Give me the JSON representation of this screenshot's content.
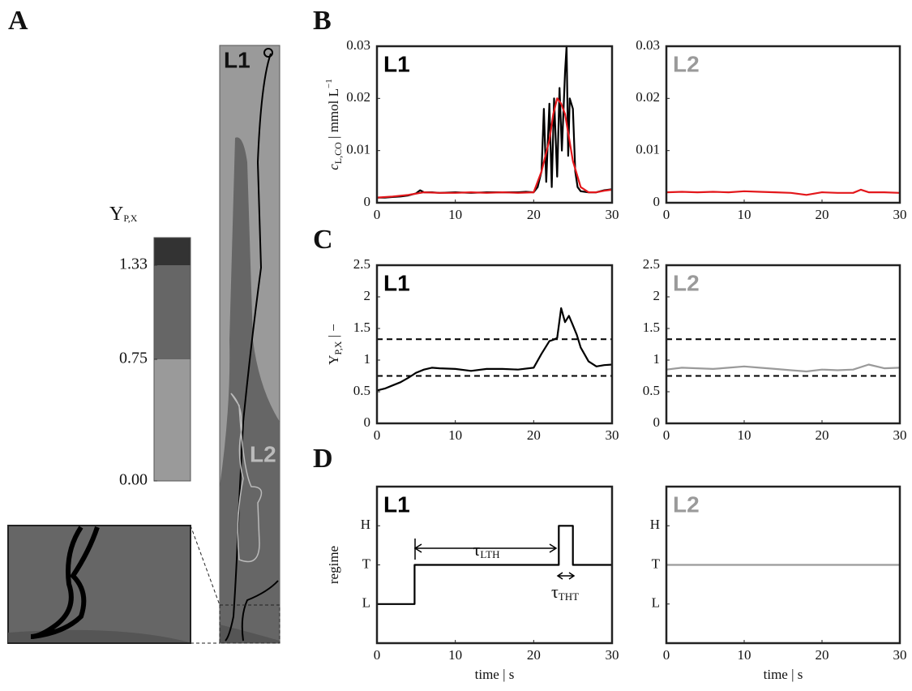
{
  "figure": {
    "panel_labels": [
      "A",
      "B",
      "C",
      "D"
    ]
  },
  "map": {
    "labels": [
      "L1",
      "L2"
    ]
  },
  "chart_data": [
    {
      "type": "colorbar",
      "title": {
        "symbol": "Y",
        "sub": "P,X"
      },
      "ylim": [
        0,
        1.5
      ],
      "yticks": [
        {
          "value": 0,
          "label": "0.00"
        },
        {
          "value": 0.75,
          "label": "0.75"
        },
        {
          "value": 1.33,
          "label": "1.33"
        }
      ],
      "levels": [
        0,
        0.75,
        1.33
      ],
      "colors": [
        "#9a9a9a",
        "#666666",
        "#333333"
      ]
    },
    {
      "type": "line",
      "label": "L1",
      "label_color": "#000000",
      "ylabel": {
        "symbol": "c",
        "sub": "L,CO",
        "unit": " | mmol L",
        "sup": "−1"
      },
      "xlim": [
        0,
        30
      ],
      "xticks": [
        0,
        10,
        20,
        30
      ],
      "ylim": [
        0,
        0.03
      ],
      "yticks": [
        0,
        0.01,
        0.02,
        0.03
      ],
      "series": [
        {
          "color": "#000000",
          "x": [
            0,
            1,
            2,
            3,
            4,
            5,
            5.5,
            6,
            7,
            8,
            10,
            12,
            14,
            16,
            18,
            19,
            20,
            20.5,
            21,
            21.3,
            21.6,
            22,
            22.3,
            22.6,
            23,
            23.3,
            23.6,
            24,
            24.2,
            24.4,
            24.6,
            25,
            25.3,
            25.6,
            26,
            27,
            28,
            29,
            30
          ],
          "values": [
            0.001,
            0.001,
            0.0011,
            0.0012,
            0.0014,
            0.0018,
            0.0024,
            0.002,
            0.002,
            0.0019,
            0.002,
            0.0019,
            0.002,
            0.002,
            0.002,
            0.0021,
            0.002,
            0.003,
            0.006,
            0.018,
            0.004,
            0.019,
            0.003,
            0.02,
            0.005,
            0.022,
            0.01,
            0.025,
            0.03,
            0.009,
            0.02,
            0.018,
            0.006,
            0.003,
            0.0022,
            0.002,
            0.002,
            0.0024,
            0.0026
          ]
        },
        {
          "color": "#e3171b",
          "x": [
            0,
            2,
            4,
            6,
            8,
            10,
            12,
            14,
            16,
            18,
            20,
            21,
            22,
            22.5,
            23,
            23.5,
            24,
            25,
            26,
            27,
            28,
            29,
            30
          ],
          "values": [
            0.001,
            0.0012,
            0.0015,
            0.002,
            0.0019,
            0.0019,
            0.002,
            0.0019,
            0.002,
            0.0019,
            0.002,
            0.006,
            0.012,
            0.017,
            0.02,
            0.019,
            0.017,
            0.008,
            0.003,
            0.002,
            0.002,
            0.0023,
            0.0025
          ]
        }
      ]
    },
    {
      "type": "line",
      "label": "L2",
      "label_color": "#9a9a9a",
      "xlim": [
        0,
        30
      ],
      "xticks": [
        0,
        10,
        20,
        30
      ],
      "ylim": [
        0,
        0.03
      ],
      "yticks": [
        0,
        0.01,
        0.02,
        0.03
      ],
      "series": [
        {
          "color": "#e3171b",
          "x": [
            0,
            2,
            4,
            6,
            8,
            10,
            12,
            14,
            16,
            18,
            20,
            22,
            24,
            25,
            26,
            28,
            30
          ],
          "values": [
            0.002,
            0.0021,
            0.002,
            0.0021,
            0.002,
            0.0022,
            0.0021,
            0.002,
            0.0019,
            0.0015,
            0.002,
            0.0019,
            0.0019,
            0.0025,
            0.002,
            0.002,
            0.0019
          ]
        }
      ]
    },
    {
      "type": "line",
      "label": "L1",
      "label_color": "#000000",
      "ylabel": {
        "symbol": "Y",
        "sub": "P,X",
        "unit": " | −"
      },
      "xlim": [
        0,
        30
      ],
      "xticks": [
        0,
        10,
        20,
        30
      ],
      "ylim": [
        0,
        2.5
      ],
      "yticks": [
        0,
        0.5,
        1,
        1.5,
        2,
        2.5
      ],
      "hlines": [
        0.75,
        1.33
      ],
      "series": [
        {
          "color": "#000000",
          "x": [
            0,
            1,
            2,
            3,
            4,
            5,
            6,
            7,
            8,
            10,
            12,
            14,
            16,
            18,
            20,
            21,
            22,
            22.5,
            23,
            23.5,
            24,
            24.5,
            25,
            25.5,
            26,
            27,
            28,
            29,
            30
          ],
          "values": [
            0.52,
            0.55,
            0.6,
            0.65,
            0.72,
            0.8,
            0.85,
            0.88,
            0.87,
            0.86,
            0.83,
            0.86,
            0.86,
            0.85,
            0.88,
            1.1,
            1.3,
            1.32,
            1.35,
            1.82,
            1.6,
            1.7,
            1.55,
            1.4,
            1.2,
            0.98,
            0.9,
            0.92,
            0.93
          ]
        }
      ]
    },
    {
      "type": "line",
      "label": "L2",
      "label_color": "#9a9a9a",
      "xlim": [
        0,
        30
      ],
      "xticks": [
        0,
        10,
        20,
        30
      ],
      "ylim": [
        0,
        2.5
      ],
      "yticks": [
        0,
        0.5,
        1,
        1.5,
        2,
        2.5
      ],
      "hlines": [
        0.75,
        1.33
      ],
      "series": [
        {
          "color": "#9a9a9a",
          "x": [
            0,
            2,
            4,
            6,
            8,
            10,
            12,
            14,
            16,
            18,
            20,
            22,
            24,
            26,
            28,
            30
          ],
          "values": [
            0.85,
            0.88,
            0.87,
            0.86,
            0.88,
            0.9,
            0.88,
            0.86,
            0.84,
            0.82,
            0.85,
            0.84,
            0.85,
            0.93,
            0.87,
            0.88
          ]
        }
      ]
    },
    {
      "type": "line",
      "label": "L1",
      "label_color": "#000000",
      "ylabel": "regime",
      "xlabel": "time | s",
      "xlim": [
        0,
        30
      ],
      "xticks": [
        0,
        10,
        20,
        30
      ],
      "ylim": [
        0,
        4
      ],
      "yticks": [
        {
          "value": 1,
          "label": "L"
        },
        {
          "value": 2,
          "label": "T"
        },
        {
          "value": 3,
          "label": "H"
        }
      ],
      "annotations": [
        {
          "symbol": "τ",
          "sub": "LTH"
        },
        {
          "symbol": "τ",
          "sub": "THT"
        }
      ],
      "series": [
        {
          "color": "#000000",
          "x": [
            0,
            4.8,
            4.8,
            23.2,
            23.2,
            25,
            25,
            30
          ],
          "values": [
            1,
            1,
            2,
            2,
            3,
            3,
            2,
            2
          ]
        }
      ]
    },
    {
      "type": "line",
      "label": "L2",
      "label_color": "#9a9a9a",
      "xlabel": "time | s",
      "xlim": [
        0,
        30
      ],
      "xticks": [
        0,
        10,
        20,
        30
      ],
      "ylim": [
        0,
        4
      ],
      "yticks": [
        {
          "value": 1,
          "label": "L"
        },
        {
          "value": 2,
          "label": "T"
        },
        {
          "value": 3,
          "label": "H"
        }
      ],
      "series": [
        {
          "color": "#9a9a9a",
          "x": [
            0,
            30
          ],
          "values": [
            2,
            2
          ]
        }
      ]
    }
  ]
}
